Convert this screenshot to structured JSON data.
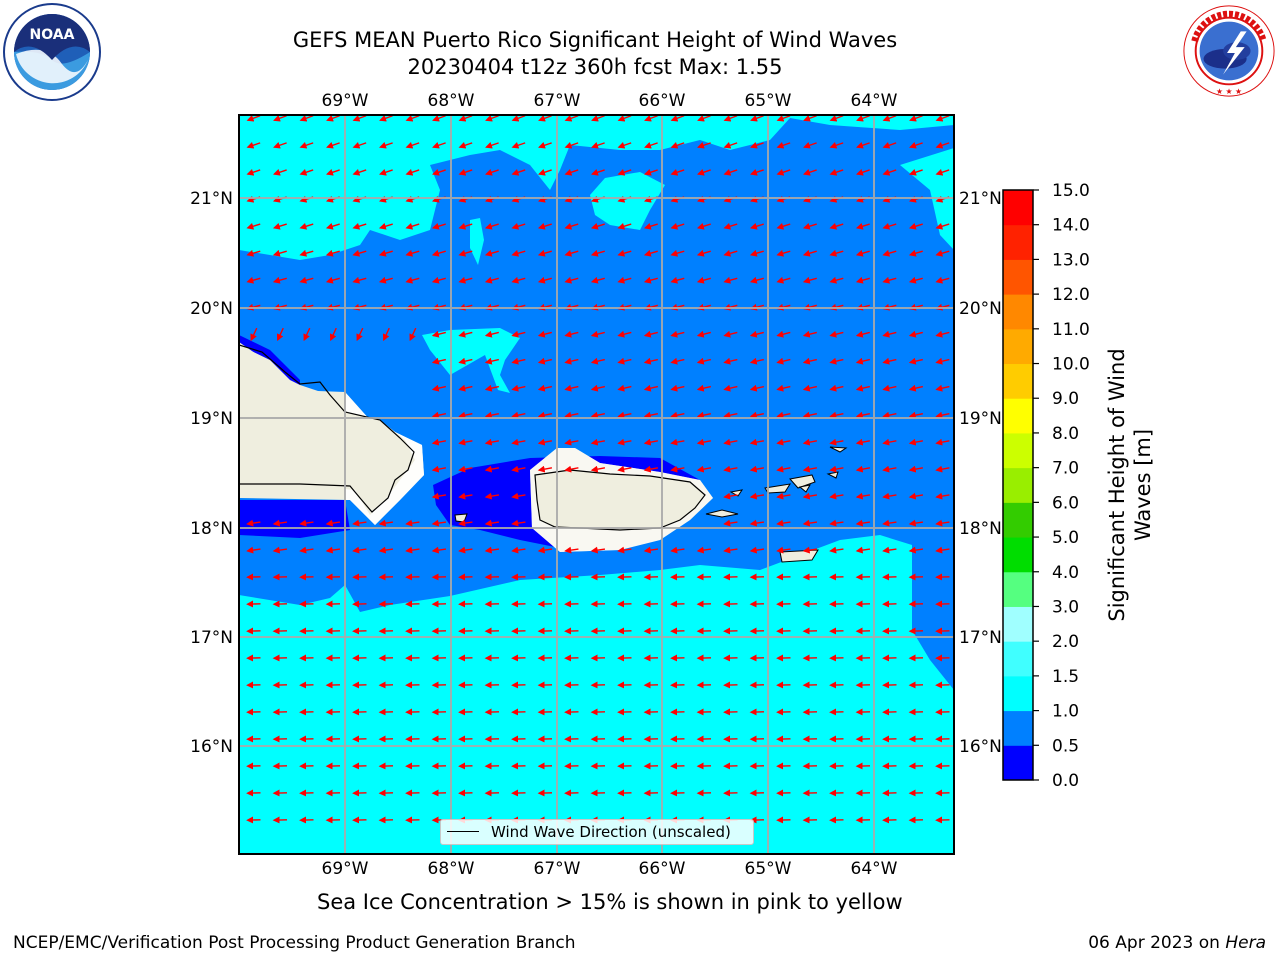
{
  "title": {
    "line1": "GEFS MEAN Puerto Rico Significant Height of Wind Waves",
    "line2": "20230404 t12z 360h fcst   Max: 1.55"
  },
  "logos": {
    "left": "noaa-logo",
    "right": "national-weather-service-logo",
    "noaa_text": "NOAA",
    "noaa_ring_text": "NATIONAL OCEANIC AND ATMOSPHERIC ADMINISTRATION • U.S. DEPARTMENT OF COMMERCE",
    "nws_ring_text": "NATIONAL WEATHER SERVICE"
  },
  "map": {
    "lon_labels": [
      "69°W",
      "68°W",
      "67°W",
      "66°W",
      "65°W",
      "64°W"
    ],
    "lat_labels": [
      "21°N",
      "20°N",
      "19°N",
      "18°N",
      "17°N",
      "16°N"
    ],
    "lon_range": [
      -70.0,
      -63.25
    ],
    "lat_range": [
      15.0,
      21.75
    ],
    "gridlines": true,
    "legend": {
      "label": "Wind Wave Direction (unscaled)",
      "placement": "bottom-center"
    },
    "wave_arrow_color": "#ff0000",
    "land_color": "#efeedf",
    "field_colors": {
      "0.0-0.5": "#0000ff",
      "0.5-1.0": "#0080ff",
      "1.0-1.5": "#00ffff"
    }
  },
  "colorbar": {
    "label": "Significant Height of Wind Waves [m]",
    "label_line1": "Significant Height of Wind",
    "label_line2": "Waves [m]",
    "ticks": [
      "15.0",
      "14.0",
      "13.0",
      "12.0",
      "11.0",
      "10.0",
      "9.0",
      "8.0",
      "7.0",
      "6.0",
      "5.0",
      "4.0",
      "3.0",
      "2.0",
      "1.5",
      "1.0",
      "0.5",
      "0.0"
    ],
    "colors": [
      "#0000ff",
      "#0080ff",
      "#00ffff",
      "#40ffff",
      "#a0ffff",
      "#55ff80",
      "#00dd00",
      "#33cc00",
      "#66dd00",
      "#99ee00",
      "#ccff00",
      "#ddee00",
      "#ffff00",
      "#ffcc00",
      "#ffaa00",
      "#ff8800",
      "#ff5500",
      "#ff2200",
      "#ff0000"
    ]
  },
  "ice_note": "Sea Ice Concentration > 15% is shown in pink to yellow",
  "footer": {
    "left": "NCEP/EMC/Verification Post Processing Product Generation Branch",
    "right_date": "06 Apr 2023 on ",
    "right_host": "Hera"
  }
}
